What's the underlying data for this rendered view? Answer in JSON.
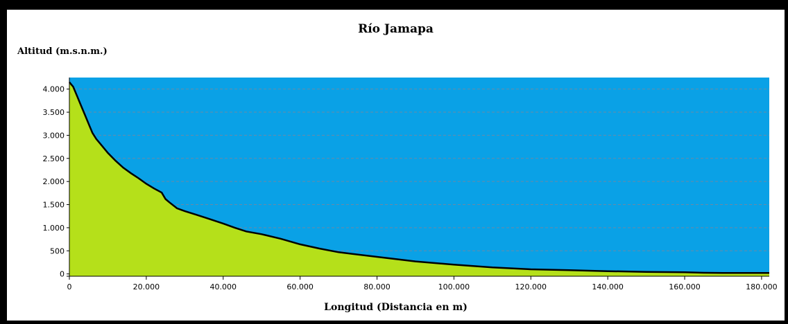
{
  "chart_data": {
    "type": "area",
    "title": "Río Jamapa",
    "ylabel": "Altitud (m.s.n.m.)",
    "xlabel": "Longitud (Distancia en m)",
    "xlim": [
      0,
      182000
    ],
    "ylim": [
      -50,
      4250
    ],
    "x_ticks": [
      0,
      20000,
      40000,
      60000,
      80000,
      100000,
      120000,
      140000,
      160000,
      180000
    ],
    "x_tick_labels": [
      "0",
      "20.000",
      "40.000",
      "60.000",
      "80.000",
      "100.000",
      "120.000",
      "140.000",
      "160.000",
      "180.000"
    ],
    "y_ticks": [
      0,
      500,
      1000,
      1500,
      2000,
      2500,
      3000,
      3500,
      4000
    ],
    "y_tick_labels": [
      "0",
      "500",
      "1.000",
      "1.500",
      "2.000",
      "2.500",
      "3.000",
      "3.500",
      "4.000"
    ],
    "grid": true,
    "colors": {
      "fill": "#b5e01a",
      "background": "#0aa1e6",
      "line": "#000000",
      "grid": "#6a8aa6"
    },
    "series": [
      {
        "x": [
          0,
          1000,
          2000,
          3000,
          4000,
          5000,
          6000,
          7000,
          8000,
          10000,
          12000,
          14000,
          16000,
          18000,
          20000,
          22000,
          24000,
          25000,
          26000,
          28000,
          30000,
          33000,
          36000,
          40000,
          43000,
          46000,
          50000,
          55000,
          60000,
          65000,
          70000,
          80000,
          90000,
          100000,
          110000,
          120000,
          130000,
          140000,
          150000,
          160000,
          165000,
          170000,
          182000
        ],
        "y": [
          4150,
          4050,
          3850,
          3650,
          3450,
          3250,
          3050,
          2920,
          2820,
          2620,
          2450,
          2300,
          2180,
          2070,
          1950,
          1850,
          1760,
          1620,
          1550,
          1420,
          1360,
          1280,
          1200,
          1090,
          1000,
          920,
          860,
          760,
          640,
          550,
          470,
          370,
          270,
          200,
          140,
          100,
          80,
          60,
          45,
          35,
          25,
          20,
          20
        ]
      }
    ]
  }
}
